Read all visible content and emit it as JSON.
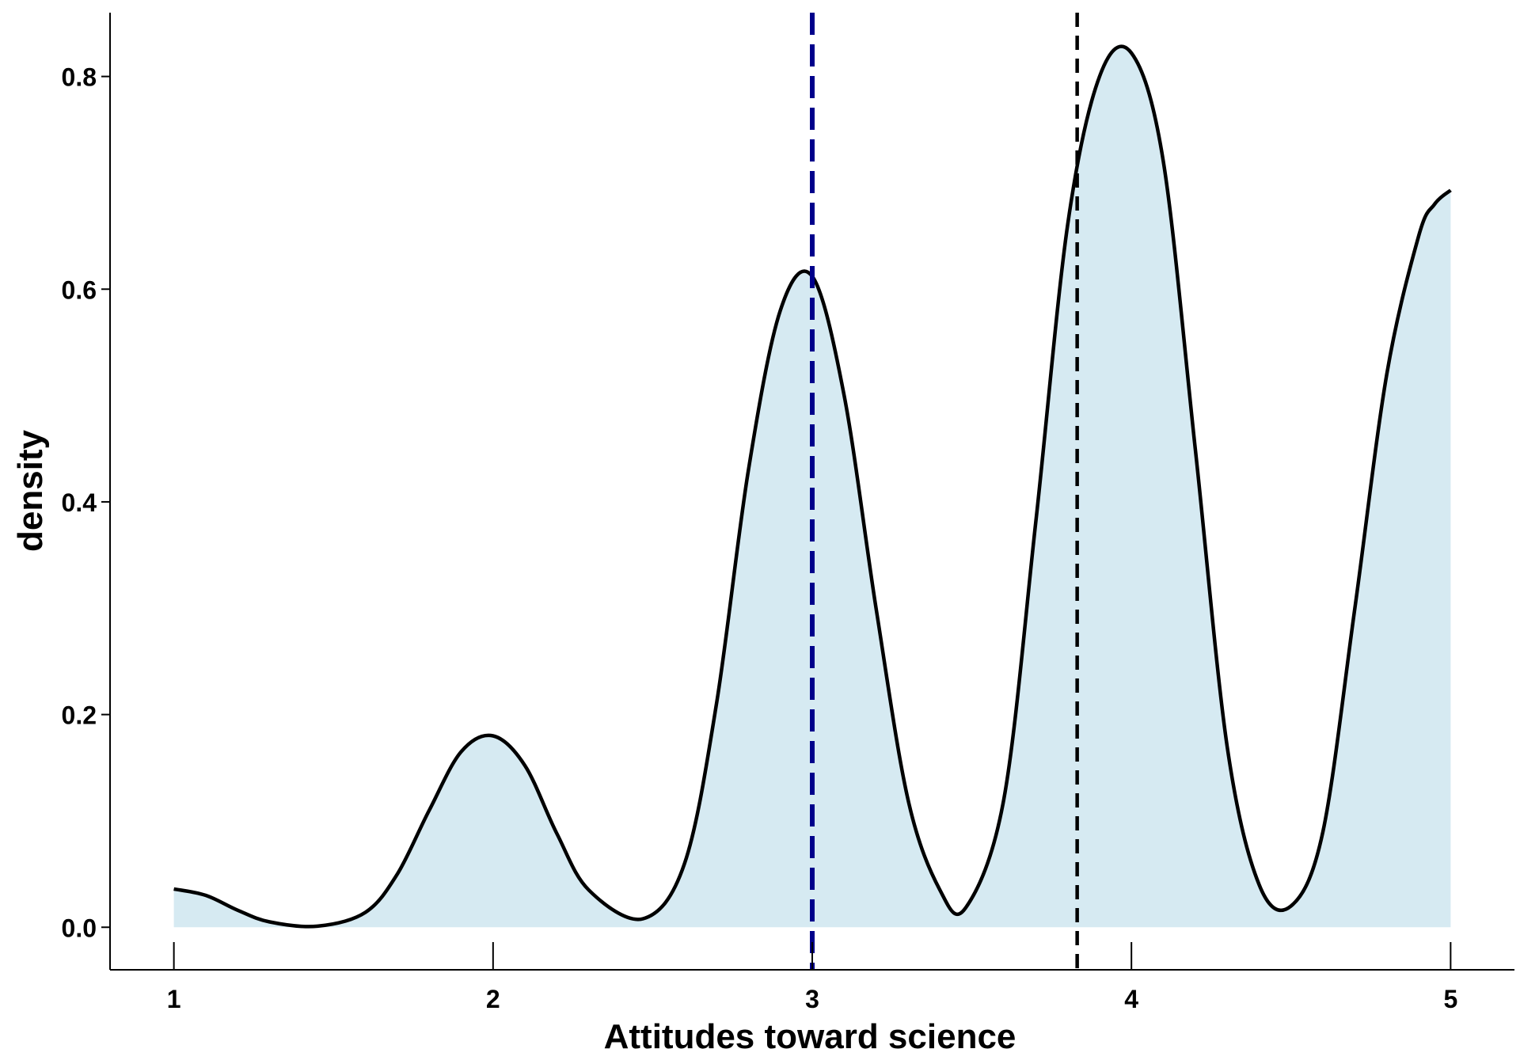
{
  "chart_data": {
    "type": "area",
    "xlabel": "Attitudes toward science",
    "ylabel": "density",
    "xlim": [
      0.8,
      5.2
    ],
    "ylim": [
      -0.04,
      0.86
    ],
    "x_ticks": [
      1,
      2,
      3,
      4,
      5
    ],
    "x_tick_labels": [
      "1",
      "2",
      "3",
      "4",
      "5"
    ],
    "y_ticks": [
      0.0,
      0.2,
      0.4,
      0.6,
      0.8
    ],
    "y_tick_labels": [
      "0.0",
      "0.2",
      "0.4",
      "0.6",
      "0.8"
    ],
    "grid": false,
    "fill_color": "#d6eaf2",
    "line_color": "#000000",
    "series": [
      {
        "x": [
          1.0,
          1.1,
          1.2,
          1.3,
          1.45,
          1.6,
          1.7,
          1.8,
          1.9,
          2.0,
          2.1,
          2.2,
          2.3,
          2.47,
          2.6,
          2.7,
          2.8,
          2.9,
          3.0,
          3.1,
          3.2,
          3.3,
          3.4,
          3.48,
          3.6,
          3.7,
          3.8,
          3.9,
          4.0,
          4.1,
          4.2,
          4.3,
          4.4,
          4.5,
          4.6,
          4.7,
          4.8,
          4.9,
          4.95,
          5.0
        ],
        "y": [
          0.036,
          0.03,
          0.016,
          0.005,
          0.001,
          0.014,
          0.05,
          0.11,
          0.165,
          0.18,
          0.152,
          0.088,
          0.035,
          0.008,
          0.06,
          0.21,
          0.43,
          0.58,
          0.612,
          0.5,
          0.3,
          0.12,
          0.035,
          0.018,
          0.12,
          0.38,
          0.66,
          0.8,
          0.822,
          0.72,
          0.45,
          0.17,
          0.04,
          0.02,
          0.09,
          0.3,
          0.52,
          0.65,
          0.68,
          0.693
        ]
      }
    ],
    "vlines": [
      {
        "x": 3.0,
        "color": "#00008b",
        "style": "dashed"
      },
      {
        "x": 3.83,
        "color": "#000000",
        "style": "dashed"
      }
    ]
  }
}
